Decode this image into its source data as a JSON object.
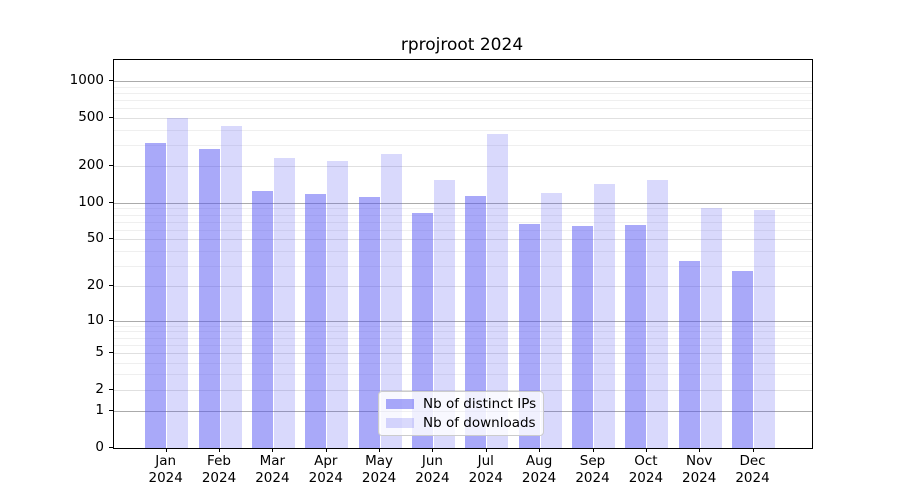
{
  "title": "rprojroot 2024",
  "legend": {
    "items": [
      {
        "label": "Nb of distinct IPs"
      },
      {
        "label": "Nb of downloads"
      }
    ]
  },
  "chart_data": {
    "type": "bar",
    "title": "rprojroot 2024",
    "xlabel": "",
    "ylabel": "",
    "y_scale": "log10(value+1)",
    "ylim": [
      0,
      1460
    ],
    "grid": true,
    "legend_position": "lower center",
    "yticks": [
      0,
      1,
      2,
      5,
      10,
      20,
      50,
      100,
      200,
      500,
      1000
    ],
    "categories": [
      "Jan 2024",
      "Feb 2024",
      "Mar 2024",
      "Apr 2024",
      "May 2024",
      "Jun 2024",
      "Jul 2024",
      "Aug 2024",
      "Sep 2024",
      "Oct 2024",
      "Nov 2024",
      "Dec 2024"
    ],
    "series": [
      {
        "name": "Nb of distinct IPs",
        "color": "rgba(84,84,243,0.50)",
        "color_hex": "#a9a9f8",
        "values": [
          310,
          280,
          125,
          118,
          112,
          83,
          113,
          67,
          65,
          66,
          33,
          27
        ]
      },
      {
        "name": "Nb of downloads",
        "color": "rgba(84,84,240,0.22)",
        "color_hex": "#d9d9f8",
        "values": [
          500,
          430,
          236,
          222,
          252,
          154,
          368,
          121,
          142,
          154,
          91,
          87
        ]
      }
    ]
  }
}
